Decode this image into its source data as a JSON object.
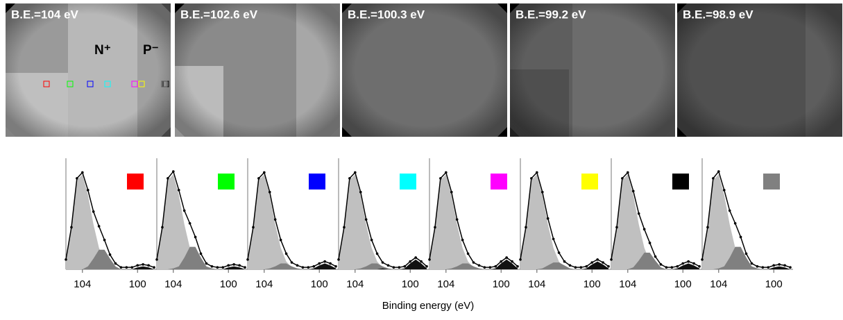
{
  "images": [
    {
      "label": "B.E.=104 eV",
      "annotations": [
        "N⁺",
        "P⁻"
      ]
    },
    {
      "label": "B.E.=102.6 eV"
    },
    {
      "label": "B.E.=100.3 eV"
    },
    {
      "label": "B.E.=99.2 eV"
    },
    {
      "label": "B.E.=98.9 eV"
    }
  ],
  "xlabel": "Binding energy (eV)",
  "chart_data": [
    {
      "type": "area",
      "marker_color": "#ff0000",
      "x": [
        105.2,
        104.8,
        104.4,
        104.0,
        103.6,
        103.2,
        102.8,
        102.4,
        102.0,
        101.6,
        101.2,
        100.8,
        100.4,
        100.0,
        99.6,
        99.2,
        98.8
      ],
      "xlim": [
        105.2,
        98.6
      ],
      "xticks": [
        104,
        100
      ],
      "ylim": [
        0,
        1.05
      ],
      "series": [
        {
          "color": "#c0c0c0",
          "values": [
            0.08,
            0.41,
            0.91,
            0.97,
            0.76,
            0.46,
            0.22,
            0.08,
            0.02,
            0.01,
            0,
            0,
            0,
            0,
            0,
            0,
            0
          ]
        },
        {
          "color": "#808080",
          "values": [
            0,
            0,
            0,
            0,
            0.03,
            0.11,
            0.2,
            0.2,
            0.11,
            0.03,
            0,
            0,
            0,
            0,
            0,
            0,
            0
          ]
        },
        {
          "color": "#111111",
          "values": [
            0,
            0,
            0,
            0,
            0,
            0,
            0,
            0,
            0,
            0,
            0,
            0,
            0,
            0.02,
            0.03,
            0.02,
            0
          ]
        },
        {
          "color": "#000000",
          "values": [
            0.1,
            0.43,
            0.93,
            0.99,
            0.81,
            0.59,
            0.44,
            0.3,
            0.15,
            0.06,
            0.02,
            0.02,
            0.02,
            0.04,
            0.05,
            0.04,
            0.02
          ]
        }
      ]
    },
    {
      "type": "area",
      "marker_color": "#00ff00",
      "x": [
        105.2,
        104.8,
        104.4,
        104.0,
        103.6,
        103.2,
        102.8,
        102.4,
        102.0,
        101.6,
        101.2,
        100.8,
        100.4,
        100.0,
        99.6,
        99.2,
        98.8
      ],
      "xlim": [
        105.2,
        98.6
      ],
      "xticks": [
        104,
        100
      ],
      "ylim": [
        0,
        1.05
      ],
      "series": [
        {
          "color": "#c0c0c0",
          "values": [
            0.08,
            0.41,
            0.91,
            0.97,
            0.76,
            0.46,
            0.22,
            0.08,
            0.02,
            0.01,
            0,
            0,
            0,
            0,
            0,
            0,
            0
          ]
        },
        {
          "color": "#808080",
          "values": [
            0,
            0,
            0,
            0.01,
            0.03,
            0.12,
            0.23,
            0.23,
            0.12,
            0.03,
            0.01,
            0,
            0,
            0,
            0,
            0,
            0
          ]
        },
        {
          "color": "#111111",
          "values": [
            0,
            0,
            0,
            0,
            0,
            0,
            0,
            0,
            0,
            0,
            0,
            0,
            0,
            0.02,
            0.03,
            0.02,
            0
          ]
        },
        {
          "color": "#000000",
          "values": [
            0.1,
            0.43,
            0.93,
            1.0,
            0.81,
            0.6,
            0.47,
            0.33,
            0.16,
            0.06,
            0.03,
            0.02,
            0.02,
            0.04,
            0.05,
            0.04,
            0.02
          ]
        }
      ]
    },
    {
      "type": "area",
      "marker_color": "#0000ff",
      "x": [
        105.2,
        104.8,
        104.4,
        104.0,
        103.6,
        103.2,
        102.8,
        102.4,
        102.0,
        101.6,
        101.2,
        100.8,
        100.4,
        100.0,
        99.6,
        99.2,
        98.8
      ],
      "xlim": [
        105.2,
        98.6
      ],
      "xticks": [
        104,
        100
      ],
      "ylim": [
        0,
        1.05
      ],
      "series": [
        {
          "color": "#c0c0c0",
          "values": [
            0.08,
            0.41,
            0.91,
            0.97,
            0.76,
            0.46,
            0.22,
            0.08,
            0.02,
            0.01,
            0,
            0,
            0,
            0,
            0,
            0,
            0
          ]
        },
        {
          "color": "#808080",
          "values": [
            0,
            0,
            0,
            0,
            0.01,
            0.03,
            0.06,
            0.06,
            0.03,
            0.01,
            0,
            0,
            0,
            0,
            0,
            0,
            0
          ]
        },
        {
          "color": "#111111",
          "values": [
            0,
            0,
            0,
            0,
            0,
            0,
            0,
            0,
            0,
            0,
            0,
            0,
            0.01,
            0.04,
            0.06,
            0.04,
            0.01
          ]
        },
        {
          "color": "#000000",
          "values": [
            0.1,
            0.43,
            0.93,
            0.99,
            0.79,
            0.51,
            0.3,
            0.16,
            0.07,
            0.04,
            0.02,
            0.02,
            0.03,
            0.06,
            0.08,
            0.06,
            0.03
          ]
        }
      ]
    },
    {
      "type": "area",
      "marker_color": "#00ffff",
      "x": [
        105.2,
        104.8,
        104.4,
        104.0,
        103.6,
        103.2,
        102.8,
        102.4,
        102.0,
        101.6,
        101.2,
        100.8,
        100.4,
        100.0,
        99.6,
        99.2,
        98.8
      ],
      "xlim": [
        105.2,
        98.6
      ],
      "xticks": [
        104,
        100
      ],
      "ylim": [
        0,
        1.05
      ],
      "series": [
        {
          "color": "#c0c0c0",
          "values": [
            0.08,
            0.41,
            0.91,
            0.97,
            0.76,
            0.46,
            0.22,
            0.08,
            0.02,
            0.01,
            0,
            0,
            0,
            0,
            0,
            0,
            0
          ]
        },
        {
          "color": "#808080",
          "values": [
            0,
            0,
            0,
            0,
            0.01,
            0.03,
            0.06,
            0.06,
            0.03,
            0.01,
            0,
            0,
            0,
            0,
            0,
            0,
            0
          ]
        },
        {
          "color": "#111111",
          "values": [
            0,
            0,
            0,
            0,
            0,
            0,
            0,
            0,
            0.01,
            0,
            0,
            0,
            0.01,
            0.06,
            0.1,
            0.06,
            0.01
          ]
        },
        {
          "color": "#000000",
          "values": [
            0.1,
            0.43,
            0.93,
            0.99,
            0.79,
            0.51,
            0.3,
            0.16,
            0.07,
            0.04,
            0.02,
            0.02,
            0.03,
            0.08,
            0.12,
            0.08,
            0.03
          ]
        }
      ]
    },
    {
      "type": "area",
      "marker_color": "#ff00ff",
      "x": [
        105.2,
        104.8,
        104.4,
        104.0,
        103.6,
        103.2,
        102.8,
        102.4,
        102.0,
        101.6,
        101.2,
        100.8,
        100.4,
        100.0,
        99.6,
        99.2,
        98.8
      ],
      "xlim": [
        105.2,
        98.6
      ],
      "xticks": [
        104,
        100
      ],
      "ylim": [
        0,
        1.05
      ],
      "series": [
        {
          "color": "#c0c0c0",
          "values": [
            0.08,
            0.41,
            0.91,
            0.97,
            0.76,
            0.46,
            0.22,
            0.08,
            0.02,
            0.01,
            0,
            0,
            0,
            0,
            0,
            0,
            0
          ]
        },
        {
          "color": "#808080",
          "values": [
            0,
            0,
            0,
            0,
            0.01,
            0.03,
            0.06,
            0.06,
            0.03,
            0.01,
            0,
            0,
            0,
            0,
            0,
            0,
            0
          ]
        },
        {
          "color": "#111111",
          "values": [
            0,
            0,
            0,
            0,
            0,
            0,
            0,
            0,
            0,
            0,
            0,
            0,
            0.01,
            0.06,
            0.1,
            0.06,
            0.01
          ]
        },
        {
          "color": "#000000",
          "values": [
            0.1,
            0.43,
            0.93,
            0.99,
            0.79,
            0.51,
            0.3,
            0.16,
            0.07,
            0.04,
            0.02,
            0.02,
            0.03,
            0.08,
            0.12,
            0.08,
            0.03
          ]
        }
      ]
    },
    {
      "type": "area",
      "marker_color": "#ffff00",
      "x": [
        105.2,
        104.8,
        104.4,
        104.0,
        103.6,
        103.2,
        102.8,
        102.4,
        102.0,
        101.6,
        101.2,
        100.8,
        100.4,
        100.0,
        99.6,
        99.2,
        98.8
      ],
      "xlim": [
        105.2,
        98.6
      ],
      "xticks": [
        104,
        100
      ],
      "ylim": [
        0,
        1.05
      ],
      "series": [
        {
          "color": "#c0c0c0",
          "values": [
            0.08,
            0.41,
            0.91,
            0.97,
            0.76,
            0.46,
            0.22,
            0.08,
            0.02,
            0.01,
            0,
            0,
            0,
            0,
            0,
            0,
            0
          ]
        },
        {
          "color": "#808080",
          "values": [
            0,
            0,
            0,
            0,
            0.01,
            0.04,
            0.07,
            0.07,
            0.04,
            0.01,
            0,
            0,
            0,
            0,
            0,
            0,
            0
          ]
        },
        {
          "color": "#111111",
          "values": [
            0,
            0,
            0,
            0,
            0,
            0,
            0,
            0,
            0,
            0,
            0,
            0,
            0.01,
            0.05,
            0.08,
            0.05,
            0.01
          ]
        },
        {
          "color": "#000000",
          "values": [
            0.1,
            0.43,
            0.93,
            0.99,
            0.79,
            0.52,
            0.31,
            0.17,
            0.08,
            0.04,
            0.02,
            0.02,
            0.03,
            0.07,
            0.1,
            0.07,
            0.03
          ]
        }
      ]
    },
    {
      "type": "area",
      "marker_color": "#000000",
      "x": [
        105.2,
        104.8,
        104.4,
        104.0,
        103.6,
        103.2,
        102.8,
        102.4,
        102.0,
        101.6,
        101.2,
        100.8,
        100.4,
        100.0,
        99.6,
        99.2,
        98.8
      ],
      "xlim": [
        105.2,
        98.6
      ],
      "xticks": [
        104,
        100
      ],
      "ylim": [
        0,
        1.05
      ],
      "series": [
        {
          "color": "#c0c0c0",
          "values": [
            0.08,
            0.41,
            0.91,
            0.97,
            0.76,
            0.46,
            0.22,
            0.08,
            0.02,
            0.01,
            0,
            0,
            0,
            0,
            0,
            0,
            0
          ]
        },
        {
          "color": "#808080",
          "values": [
            0,
            0,
            0,
            0,
            0.02,
            0.09,
            0.17,
            0.17,
            0.09,
            0.02,
            0,
            0,
            0,
            0,
            0,
            0,
            0
          ]
        },
        {
          "color": "#111111",
          "values": [
            0,
            0,
            0,
            0,
            0,
            0,
            0,
            0,
            0,
            0,
            0,
            0,
            0.01,
            0.04,
            0.06,
            0.04,
            0.01
          ]
        },
        {
          "color": "#000000",
          "values": [
            0.1,
            0.43,
            0.93,
            0.99,
            0.8,
            0.57,
            0.41,
            0.27,
            0.13,
            0.05,
            0.02,
            0.02,
            0.03,
            0.06,
            0.08,
            0.06,
            0.03
          ]
        }
      ]
    },
    {
      "type": "area",
      "marker_color": "#808080",
      "x": [
        105.2,
        104.8,
        104.4,
        104.0,
        103.6,
        103.2,
        102.8,
        102.4,
        102.0,
        101.6,
        101.2,
        100.8,
        100.4,
        100.0,
        99.6,
        99.2,
        98.8
      ],
      "xlim": [
        105.2,
        98.6
      ],
      "xticks": [
        104,
        100
      ],
      "ylim": [
        0,
        1.05
      ],
      "series": [
        {
          "color": "#c0c0c0",
          "values": [
            0.08,
            0.41,
            0.91,
            0.97,
            0.76,
            0.46,
            0.22,
            0.08,
            0.02,
            0.01,
            0,
            0,
            0,
            0,
            0,
            0,
            0
          ]
        },
        {
          "color": "#808080",
          "values": [
            0,
            0,
            0,
            0.01,
            0.03,
            0.12,
            0.23,
            0.23,
            0.12,
            0.03,
            0.01,
            0,
            0,
            0,
            0,
            0,
            0
          ]
        },
        {
          "color": "#111111",
          "values": [
            0,
            0,
            0,
            0,
            0,
            0,
            0,
            0,
            0,
            0,
            0,
            0,
            0,
            0.02,
            0.03,
            0.02,
            0
          ]
        },
        {
          "color": "#000000",
          "values": [
            0.1,
            0.43,
            0.93,
            1.0,
            0.81,
            0.6,
            0.47,
            0.33,
            0.16,
            0.06,
            0.03,
            0.02,
            0.02,
            0.04,
            0.05,
            0.04,
            0.02
          ]
        }
      ]
    }
  ]
}
